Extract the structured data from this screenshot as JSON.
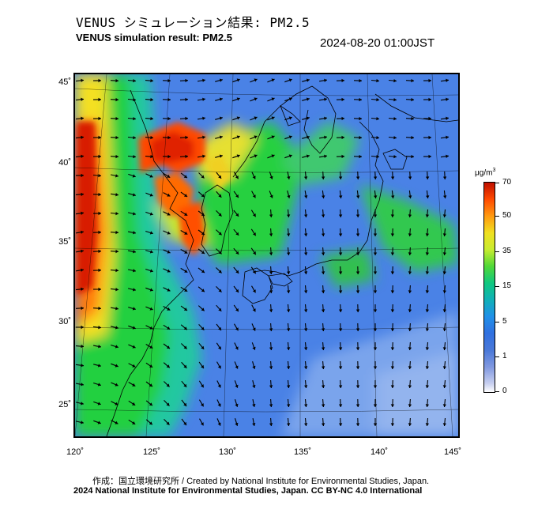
{
  "header": {
    "title_ja": "VENUS シミュレーション結果: PM2.5",
    "title_en": "VENUS simulation result: PM2.5",
    "timestamp": "2024-08-20 01:00JST"
  },
  "map": {
    "pollutant": "PM2.5",
    "lat_labels": [
      "45˚",
      "40˚",
      "35˚",
      "30˚",
      "25˚"
    ],
    "lon_labels": [
      "120˚",
      "125˚",
      "130˚",
      "135˚",
      "140˚",
      "145˚"
    ],
    "colors": {
      "very_high": "#d81c00",
      "high": "#ff6a00",
      "elevated": "#f4e020",
      "moderate": "#22d040",
      "low": "#18b8b0",
      "clean": "#3f7ae8",
      "very_clean": "#a8c0ee",
      "coast": "#000000",
      "wind_arrow": "#000000"
    }
  },
  "colorbar": {
    "unit_base": "μg/m",
    "unit_exp": "3",
    "ticks": [
      "70",
      "50",
      "35",
      "15",
      "5",
      "1",
      "0"
    ]
  },
  "footer": {
    "credit_line": "作成：国立環境研究所 / Created by National Institute for Environmental Studies, Japan.",
    "copyright_line": "2024 National Institute for Environmental Studies, Japan. CC BY-NC 4.0 International"
  }
}
